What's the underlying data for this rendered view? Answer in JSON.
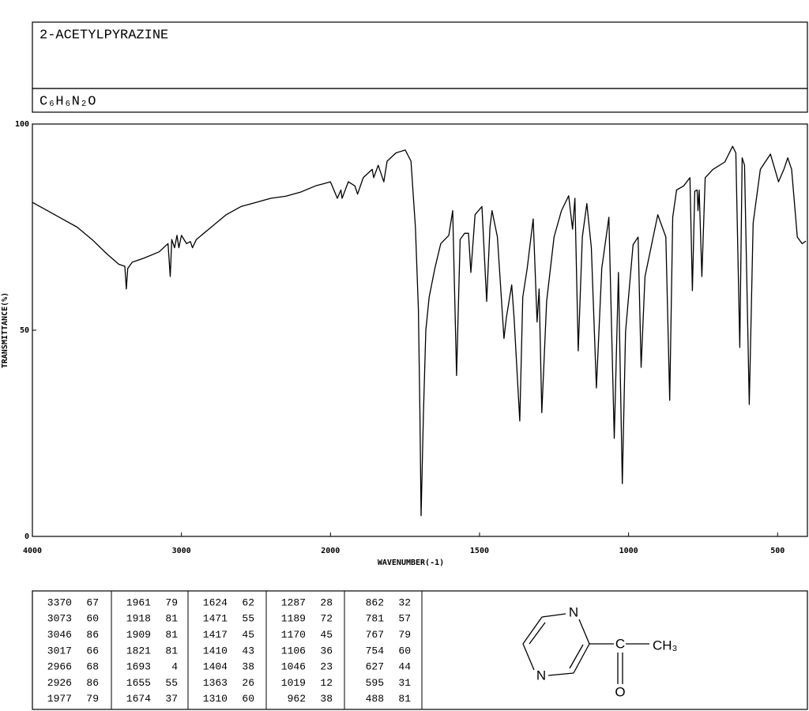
{
  "header": {
    "title": "2-ACETYLPYRAZINE",
    "formula": "C₆H₆N₂O"
  },
  "chart_data": {
    "type": "line",
    "xlabel": "WAVENUMBER(-1)",
    "ylabel": "TRANSMITTANCE(%)",
    "xlim": [
      4000,
      400
    ],
    "ylim": [
      0,
      100
    ],
    "xticks": [
      4000,
      3000,
      2000,
      1500,
      1000,
      500
    ],
    "yticks": [
      0,
      50,
      100
    ],
    "x_scale_break": 2000,
    "x_scale_expansion": 2,
    "grid": false,
    "series": [
      {
        "name": null,
        "color": "#000000",
        "x": [
          4000,
          3900,
          3800,
          3700,
          3600,
          3500,
          3420,
          3380,
          3370,
          3360,
          3330,
          3250,
          3150,
          3090,
          3075,
          3065,
          3046,
          3030,
          3017,
          3000,
          2966,
          2940,
          2926,
          2900,
          2800,
          2700,
          2600,
          2500,
          2400,
          2300,
          2200,
          2100,
          2050,
          2000,
          1977,
          1965,
          1961,
          1940,
          1918,
          1909,
          1890,
          1860,
          1855,
          1840,
          1821,
          1810,
          1780,
          1749,
          1730,
          1715,
          1705,
          1700,
          1696,
          1688,
          1680,
          1669,
          1650,
          1630,
          1603,
          1590,
          1577,
          1565,
          1550,
          1537,
          1529,
          1515,
          1492,
          1476,
          1465,
          1458,
          1440,
          1418,
          1410,
          1392,
          1384,
          1365,
          1355,
          1340,
          1320,
          1307,
          1300,
          1291,
          1275,
          1250,
          1225,
          1201,
          1188,
          1180,
          1169,
          1155,
          1140,
          1125,
          1108,
          1090,
          1066,
          1048,
          1034,
          1021,
          1010,
          985,
          968,
          958,
          945,
          902,
          875,
          862,
          852,
          839,
          815,
          794,
          786,
          778,
          770,
          767,
          763,
          754,
          743,
          717,
          677,
          651,
          640,
          627,
          619,
          611,
          595,
          582,
          558,
          524,
          497,
          479,
          466,
          453,
          434,
          418,
          405
        ],
        "values": [
          81,
          79,
          77,
          75,
          72,
          68.5,
          66,
          65.5,
          60,
          65,
          66.5,
          67.5,
          69,
          71,
          63,
          72,
          70,
          73,
          70,
          73,
          71,
          71.5,
          70,
          72,
          75,
          78,
          80,
          81,
          82,
          82.5,
          83.5,
          85,
          85.5,
          86,
          82,
          84,
          82,
          86,
          85,
          83,
          87,
          89,
          87,
          90,
          86,
          91,
          93,
          93.7,
          91,
          75,
          55,
          30,
          5,
          30,
          50,
          58,
          65,
          71,
          73,
          79,
          39,
          72,
          73.5,
          73.5,
          64,
          78,
          80,
          57,
          75,
          79,
          72.6,
          48,
          53,
          61,
          53,
          28,
          58,
          65,
          77,
          52,
          60,
          30,
          57,
          72.6,
          79,
          82.6,
          74.5,
          82,
          45,
          72.6,
          80.7,
          70,
          36,
          65,
          77.4,
          23.8,
          64,
          12.8,
          49.6,
          70.7,
          72.6,
          41,
          63,
          78,
          72.6,
          33,
          77.4,
          84,
          85,
          87,
          59.6,
          83.7,
          84,
          79,
          84,
          63,
          87,
          89,
          90.8,
          94.6,
          93,
          45.8,
          91.8,
          90,
          32,
          76,
          89,
          92.7,
          86,
          89,
          91.8,
          89,
          72.6,
          71,
          71.6
        ]
      }
    ]
  },
  "peak_table": [
    [
      [
        3370,
        67
      ],
      [
        3073,
        60
      ],
      [
        3046,
        86
      ],
      [
        3017,
        66
      ],
      [
        2966,
        68
      ],
      [
        2926,
        86
      ],
      [
        1977,
        79
      ]
    ],
    [
      [
        1961,
        79
      ],
      [
        1918,
        81
      ],
      [
        1909,
        81
      ],
      [
        1821,
        81
      ],
      [
        1693,
        4
      ],
      [
        1655,
        55
      ],
      [
        1674,
        37
      ]
    ],
    [
      [
        1624,
        62
      ],
      [
        1471,
        55
      ],
      [
        1417,
        45
      ],
      [
        1410,
        43
      ],
      [
        1404,
        38
      ],
      [
        1363,
        26
      ],
      [
        1310,
        60
      ]
    ],
    [
      [
        1287,
        28
      ],
      [
        1189,
        72
      ],
      [
        1170,
        45
      ],
      [
        1106,
        36
      ],
      [
        1046,
        23
      ],
      [
        1019,
        12
      ],
      [
        962,
        38
      ]
    ],
    [
      [
        862,
        32
      ],
      [
        781,
        57
      ],
      [
        767,
        79
      ],
      [
        754,
        60
      ],
      [
        627,
        44
      ],
      [
        595,
        31
      ],
      [
        488,
        81
      ]
    ]
  ],
  "structure": {
    "atoms": [
      "N",
      "N",
      "C",
      "CH₃",
      "O"
    ]
  }
}
